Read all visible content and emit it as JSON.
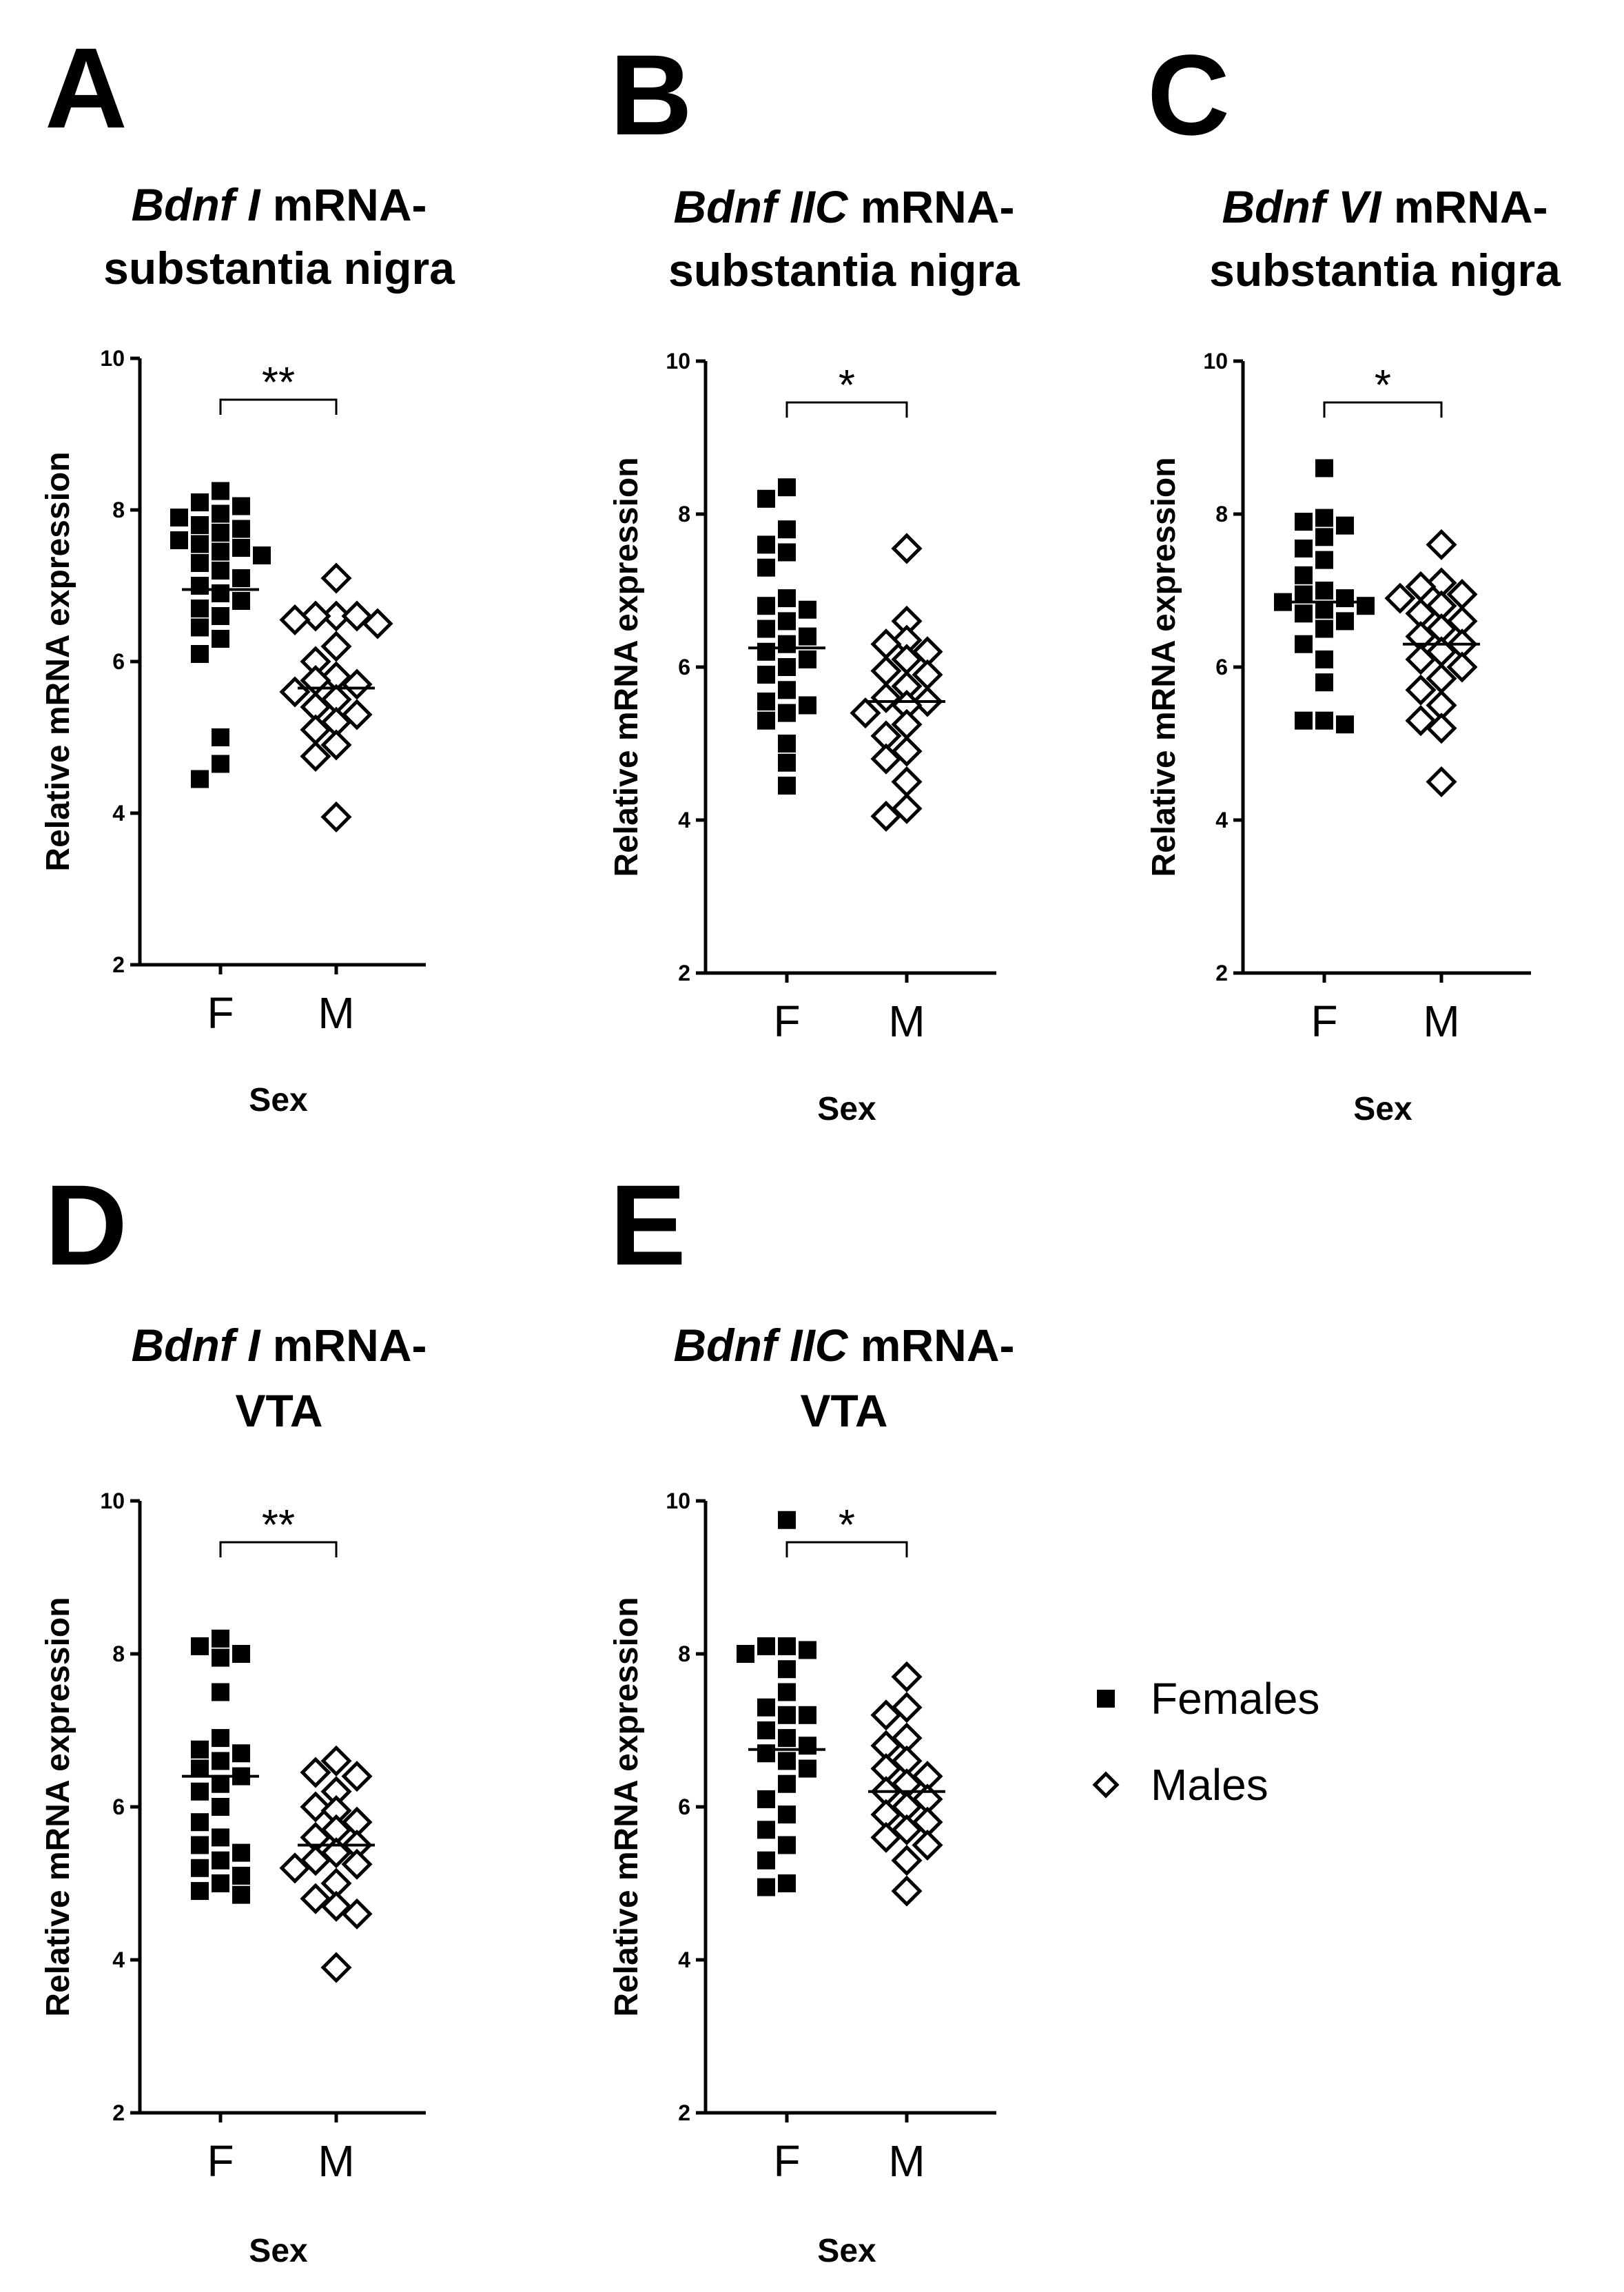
{
  "chart_data": [
    {
      "panel": "A",
      "type": "scatter",
      "title_italic": "Bdnf I",
      "title_rest": " mRNA-",
      "title_line2": "substantia nigra",
      "ylabel": "Relative mRNA expression",
      "xlabel": "Sex",
      "ylim": [
        2,
        10
      ],
      "yticks": [
        "2",
        "4",
        "6",
        "8",
        "10"
      ],
      "categories": [
        "F",
        "M"
      ],
      "significance": "**",
      "series": [
        {
          "name": "Females",
          "marker": "square-filled",
          "mean": 6.95,
          "values": [
            8.25,
            8.1,
            8.05,
            7.95,
            7.9,
            7.8,
            7.75,
            7.7,
            7.6,
            7.55,
            7.5,
            7.45,
            7.4,
            7.3,
            7.2,
            7.1,
            7.0,
            6.9,
            6.8,
            6.7,
            6.6,
            6.45,
            6.3,
            6.1,
            5.0,
            4.65,
            4.45
          ]
        },
        {
          "name": "Males",
          "marker": "diamond-open",
          "mean": 5.65,
          "values": [
            7.1,
            6.6,
            6.6,
            6.6,
            6.55,
            6.5,
            6.2,
            6.0,
            5.8,
            5.75,
            5.7,
            5.6,
            5.5,
            5.4,
            5.3,
            5.2,
            5.1,
            4.9,
            4.75,
            3.95
          ]
        }
      ]
    },
    {
      "panel": "B",
      "type": "scatter",
      "title_italic": "Bdnf IIC",
      "title_rest": " mRNA-",
      "title_line2": "substantia nigra",
      "ylabel": "Relative mRNA expression",
      "xlabel": "Sex",
      "ylim": [
        2,
        10
      ],
      "yticks": [
        "2",
        "4",
        "6",
        "8",
        "10"
      ],
      "categories": [
        "F",
        "M"
      ],
      "significance": "*",
      "series": [
        {
          "name": "Females",
          "marker": "square-filled",
          "mean": 6.25,
          "values": [
            8.35,
            8.2,
            7.8,
            7.6,
            7.5,
            7.3,
            6.9,
            6.8,
            6.75,
            6.6,
            6.5,
            6.4,
            6.3,
            6.2,
            6.1,
            6.0,
            5.9,
            5.7,
            5.55,
            5.5,
            5.4,
            5.3,
            5.0,
            4.75,
            4.45
          ]
        },
        {
          "name": "Males",
          "marker": "diamond-open",
          "mean": 5.55,
          "values": [
            7.55,
            6.6,
            6.35,
            6.3,
            6.2,
            6.1,
            5.95,
            5.9,
            5.75,
            5.6,
            5.55,
            5.5,
            5.4,
            5.25,
            5.1,
            4.9,
            4.8,
            4.5,
            4.15,
            4.05
          ]
        }
      ]
    },
    {
      "panel": "C",
      "type": "scatter",
      "title_italic": "Bdnf VI",
      "title_rest": " mRNA-",
      "title_line2": "substantia nigra",
      "ylabel": "Relative mRNA expression",
      "xlabel": "Sex",
      "ylim": [
        2,
        10
      ],
      "yticks": [
        "2",
        "4",
        "6",
        "8",
        "10"
      ],
      "categories": [
        "F",
        "M"
      ],
      "significance": "*",
      "series": [
        {
          "name": "Females",
          "marker": "square-filled",
          "mean": 6.85,
          "values": [
            8.6,
            7.95,
            7.9,
            7.85,
            7.7,
            7.55,
            7.4,
            7.2,
            7.0,
            6.95,
            6.9,
            6.85,
            6.8,
            6.75,
            6.7,
            6.6,
            6.5,
            6.3,
            6.1,
            5.8,
            5.3,
            5.3,
            5.25
          ]
        },
        {
          "name": "Males",
          "marker": "diamond-open",
          "mean": 6.3,
          "values": [
            7.6,
            7.1,
            7.05,
            6.95,
            6.9,
            6.8,
            6.7,
            6.6,
            6.5,
            6.4,
            6.3,
            6.2,
            6.1,
            6.0,
            5.85,
            5.7,
            5.5,
            5.3,
            5.2,
            4.5
          ]
        }
      ]
    },
    {
      "panel": "D",
      "type": "scatter",
      "title_italic": "Bdnf I",
      "title_rest": " mRNA-",
      "title_line2": "VTA",
      "ylabel": "Relative mRNA expression",
      "xlabel": "Sex",
      "ylim": [
        2,
        10
      ],
      "yticks": [
        "2",
        "4",
        "6",
        "8",
        "10"
      ],
      "categories": [
        "F",
        "M"
      ],
      "significance": "**",
      "series": [
        {
          "name": "Females",
          "marker": "square-filled",
          "mean": 6.4,
          "values": [
            8.2,
            8.1,
            8.0,
            7.95,
            7.5,
            6.9,
            6.75,
            6.7,
            6.6,
            6.5,
            6.4,
            6.3,
            6.2,
            6.0,
            5.8,
            5.6,
            5.5,
            5.4,
            5.3,
            5.2,
            5.1,
            5.0,
            4.9,
            4.85
          ]
        },
        {
          "name": "Males",
          "marker": "diamond-open",
          "mean": 5.5,
          "values": [
            6.6,
            6.45,
            6.4,
            6.2,
            6.0,
            5.95,
            5.8,
            5.7,
            5.6,
            5.5,
            5.4,
            5.3,
            5.25,
            5.2,
            5.0,
            4.8,
            4.7,
            4.6,
            3.9
          ]
        }
      ]
    },
    {
      "panel": "E",
      "type": "scatter",
      "title_italic": "Bdnf IIC",
      "title_rest": " mRNA-",
      "title_line2": "VTA",
      "ylabel": "Relative mRNA expression",
      "xlabel": "Sex",
      "ylim": [
        2,
        10
      ],
      "yticks": [
        "2",
        "4",
        "6",
        "8",
        "10"
      ],
      "categories": [
        "F",
        "M"
      ],
      "significance": "*",
      "series": [
        {
          "name": "Females",
          "marker": "square-filled",
          "mean": 6.75,
          "values": [
            9.75,
            8.1,
            8.1,
            8.05,
            8.0,
            7.8,
            7.5,
            7.3,
            7.2,
            7.2,
            7.0,
            6.9,
            6.8,
            6.7,
            6.6,
            6.5,
            6.3,
            6.1,
            5.9,
            5.7,
            5.5,
            5.3,
            5.0,
            4.95
          ]
        },
        {
          "name": "Males",
          "marker": "diamond-open",
          "mean": 6.2,
          "values": [
            7.7,
            7.3,
            7.2,
            6.9,
            6.8,
            6.6,
            6.5,
            6.4,
            6.3,
            6.2,
            6.1,
            6.0,
            5.9,
            5.8,
            5.7,
            5.6,
            5.5,
            5.3,
            4.9
          ]
        }
      ]
    }
  ],
  "legend": {
    "items": [
      {
        "label": "Females",
        "marker": "square-filled"
      },
      {
        "label": "Males",
        "marker": "diamond-open"
      }
    ]
  }
}
